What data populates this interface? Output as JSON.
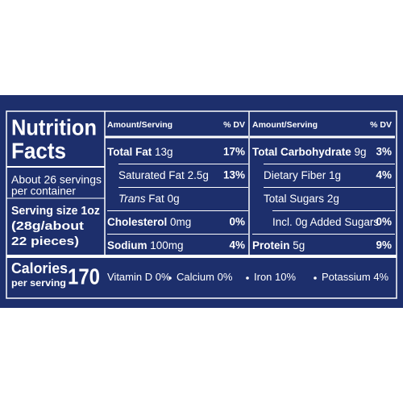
{
  "label": {
    "title": [
      "Nutrition",
      "Facts"
    ],
    "servings": [
      "About 26 servings",
      "per container"
    ],
    "serving_size": [
      "Serving size 1oz",
      "(28g/about",
      "22 pieces)"
    ],
    "calories": {
      "label": "Calories",
      "sublabel": "per serving",
      "value": "170"
    },
    "columns": [
      {
        "header": {
          "amount": "Amount/Serving",
          "dv": "% DV"
        },
        "rows": [
          {
            "name": "Total Fat",
            "amount": "13g",
            "dv": "17%",
            "bold": true,
            "indent": 0
          },
          {
            "name": "Saturated Fat",
            "amount": "2.5g",
            "dv": "13%",
            "bold": false,
            "indent": 1
          },
          {
            "prefix": "Trans",
            "name": "Fat",
            "amount": "0g",
            "bold": false,
            "indent": 1
          },
          {
            "name": "Cholesterol",
            "amount": "0mg",
            "dv": "0%",
            "bold": true,
            "indent": 0
          },
          {
            "name": "Sodium",
            "amount": "100mg",
            "dv": "4%",
            "bold": true,
            "indent": 0
          }
        ]
      },
      {
        "header": {
          "amount": "Amount/Serving",
          "dv": "% DV"
        },
        "rows": [
          {
            "name": "Total Carbohydrate",
            "amount": "9g",
            "dv": "3%",
            "bold": true,
            "indent": 0
          },
          {
            "name": "Dietary Fiber",
            "amount": "1g",
            "dv": "4%",
            "bold": false,
            "indent": 1
          },
          {
            "name": "Total Sugars",
            "amount": "2g",
            "bold": false,
            "indent": 1
          },
          {
            "name": "Incl. 0g Added Sugars",
            "dv": "0%",
            "bold": false,
            "indent": 2
          },
          {
            "name": "Protein",
            "amount": "5g",
            "dv": "9%",
            "bold": true,
            "indent": 0
          }
        ]
      }
    ],
    "vitamins": [
      {
        "name": "Vitamin D",
        "dv": "0%"
      },
      {
        "name": "Calcium",
        "dv": "0%"
      },
      {
        "name": "Iron",
        "dv": "10%"
      },
      {
        "name": "Potassium",
        "dv": "4%"
      }
    ]
  }
}
